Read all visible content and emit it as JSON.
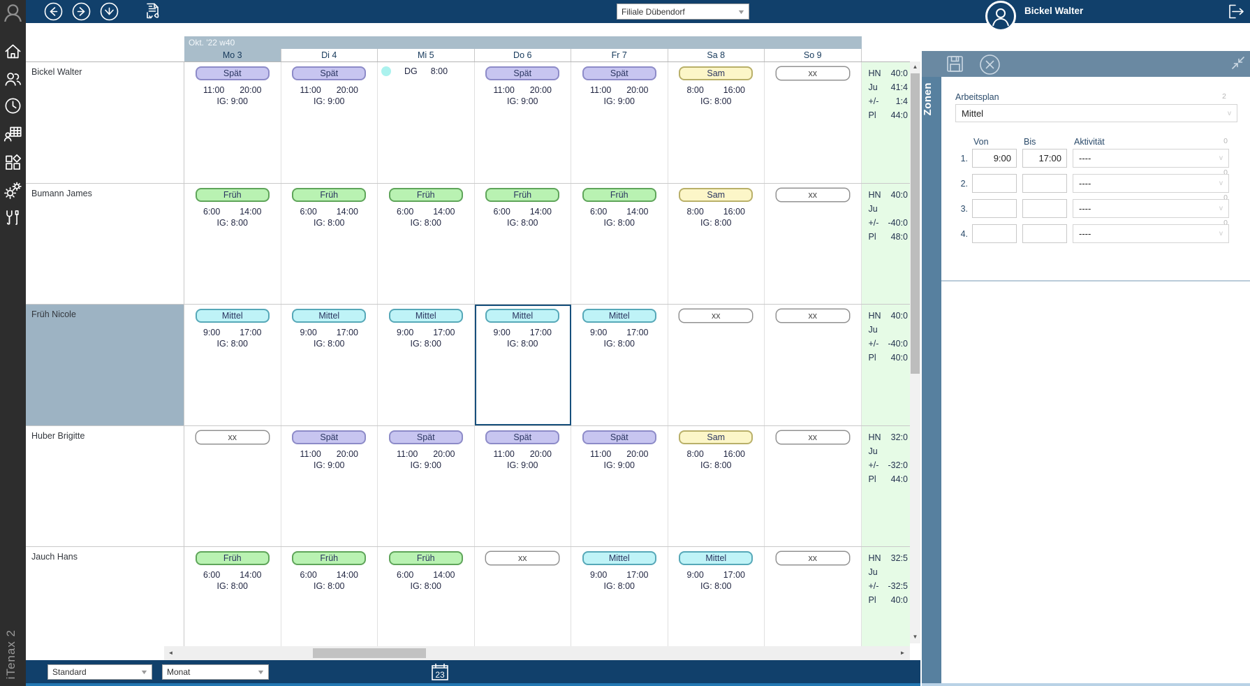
{
  "app": {
    "name": "iTenax 2"
  },
  "topbar": {
    "branch_select": "Filiale Dübendorf",
    "user": "Bickel Walter",
    "icons": [
      "arrow-left-circle",
      "arrow-right-circle",
      "arrow-down-circle",
      "export-pdf",
      "user-avatar",
      "logout"
    ]
  },
  "sidebar": {
    "icons": [
      "app-logo",
      "home",
      "users",
      "clock",
      "staff-schedule",
      "modules",
      "settings",
      "tools"
    ],
    "brand": "iTenax 2"
  },
  "calendar": {
    "week_label": "Okt. '22 w40",
    "days": [
      {
        "label": "Mo 3",
        "today": true
      },
      {
        "label": "Di 4",
        "today": false
      },
      {
        "label": "Mi 5",
        "today": false
      },
      {
        "label": "Do 6",
        "today": false
      },
      {
        "label": "Fr 7",
        "today": false
      },
      {
        "label": "Sa 8",
        "today": false
      },
      {
        "label": "So 9",
        "today": false
      }
    ],
    "summary_labels": [
      "HN",
      "Ju",
      "+/-",
      "Pl"
    ],
    "selected_day_index": 3,
    "employees": [
      {
        "name": "Bickel Walter",
        "selected": false,
        "cells": [
          {
            "t": "shift",
            "label": "Spät",
            "from": "11:00",
            "to": "20:00",
            "ig": "IG: 9:00"
          },
          {
            "t": "shift",
            "label": "Spät",
            "from": "11:00",
            "to": "20:00",
            "ig": "IG: 9:00"
          },
          {
            "t": "note",
            "code": "DG",
            "time": "8:00"
          },
          {
            "t": "shift",
            "label": "Spät",
            "from": "11:00",
            "to": "20:00",
            "ig": "IG: 9:00"
          },
          {
            "t": "shift",
            "label": "Spät",
            "from": "11:00",
            "to": "20:00",
            "ig": "IG: 9:00"
          },
          {
            "t": "shift",
            "label": "Sam",
            "from": "8:00",
            "to": "16:00",
            "ig": "IG: 8:00"
          },
          {
            "t": "off",
            "label": "xx"
          }
        ],
        "summary": [
          "40:0",
          "41:4",
          "1:4",
          "44:0"
        ]
      },
      {
        "name": "Bumann James",
        "selected": false,
        "cells": [
          {
            "t": "shift",
            "label": "Früh",
            "from": "6:00",
            "to": "14:00",
            "ig": "IG: 8:00"
          },
          {
            "t": "shift",
            "label": "Früh",
            "from": "6:00",
            "to": "14:00",
            "ig": "IG: 8:00"
          },
          {
            "t": "shift",
            "label": "Früh",
            "from": "6:00",
            "to": "14:00",
            "ig": "IG: 8:00"
          },
          {
            "t": "shift",
            "label": "Früh",
            "from": "6:00",
            "to": "14:00",
            "ig": "IG: 8:00"
          },
          {
            "t": "shift",
            "label": "Früh",
            "from": "6:00",
            "to": "14:00",
            "ig": "IG: 8:00"
          },
          {
            "t": "shift",
            "label": "Sam",
            "from": "8:00",
            "to": "16:00",
            "ig": "IG: 8:00"
          },
          {
            "t": "off",
            "label": "xx"
          }
        ],
        "summary": [
          "40:0",
          "",
          "-40:0",
          "48:0"
        ]
      },
      {
        "name": "Früh Nicole",
        "selected": true,
        "cells": [
          {
            "t": "shift",
            "label": "Mittel",
            "from": "9:00",
            "to": "17:00",
            "ig": "IG: 8:00"
          },
          {
            "t": "shift",
            "label": "Mittel",
            "from": "9:00",
            "to": "17:00",
            "ig": "IG: 8:00"
          },
          {
            "t": "shift",
            "label": "Mittel",
            "from": "9:00",
            "to": "17:00",
            "ig": "IG: 8:00"
          },
          {
            "t": "shift",
            "label": "Mittel",
            "from": "9:00",
            "to": "17:00",
            "ig": "IG: 8:00"
          },
          {
            "t": "shift",
            "label": "Mittel",
            "from": "9:00",
            "to": "17:00",
            "ig": "IG: 8:00"
          },
          {
            "t": "off",
            "label": "xx"
          },
          {
            "t": "off",
            "label": "xx"
          }
        ],
        "summary": [
          "40:0",
          "",
          "-40:0",
          "40:0"
        ]
      },
      {
        "name": "Huber Brigitte",
        "selected": false,
        "cells": [
          {
            "t": "off",
            "label": "xx"
          },
          {
            "t": "shift",
            "label": "Spät",
            "from": "11:00",
            "to": "20:00",
            "ig": "IG: 9:00"
          },
          {
            "t": "shift",
            "label": "Spät",
            "from": "11:00",
            "to": "20:00",
            "ig": "IG: 9:00"
          },
          {
            "t": "shift",
            "label": "Spät",
            "from": "11:00",
            "to": "20:00",
            "ig": "IG: 9:00"
          },
          {
            "t": "shift",
            "label": "Spät",
            "from": "11:00",
            "to": "20:00",
            "ig": "IG: 9:00"
          },
          {
            "t": "shift",
            "label": "Sam",
            "from": "8:00",
            "to": "16:00",
            "ig": "IG: 8:00"
          },
          {
            "t": "off",
            "label": "xx"
          }
        ],
        "summary": [
          "32:0",
          "",
          "-32:0",
          "44:0"
        ]
      },
      {
        "name": "Jauch Hans",
        "selected": false,
        "cells": [
          {
            "t": "shift",
            "label": "Früh",
            "from": "6:00",
            "to": "14:00",
            "ig": "IG: 8:00"
          },
          {
            "t": "shift",
            "label": "Früh",
            "from": "6:00",
            "to": "14:00",
            "ig": "IG: 8:00"
          },
          {
            "t": "shift",
            "label": "Früh",
            "from": "6:00",
            "to": "14:00",
            "ig": "IG: 8:00"
          },
          {
            "t": "off",
            "label": "xx"
          },
          {
            "t": "shift",
            "label": "Mittel",
            "from": "9:00",
            "to": "17:00",
            "ig": "IG: 8:00"
          },
          {
            "t": "shift",
            "label": "Mittel",
            "from": "9:00",
            "to": "17:00",
            "ig": "IG: 8:00"
          },
          {
            "t": "off",
            "label": "xx"
          }
        ],
        "summary": [
          "32:5",
          "",
          "-32:5",
          "40:0"
        ]
      }
    ]
  },
  "panel": {
    "tab": "Zonen",
    "icons": [
      "save",
      "close",
      "collapse"
    ],
    "arbeitsplan": {
      "label": "Arbeitsplan",
      "value": "Mittel",
      "counter": "2"
    },
    "columns": {
      "von": "Von",
      "bis": "Bis",
      "aktivitaet": "Aktivität",
      "counter": "0"
    },
    "rows": [
      {
        "num": "1.",
        "von": "9:00",
        "bis": "17:00",
        "akt": "----",
        "counter": "0"
      },
      {
        "num": "2.",
        "von": "",
        "bis": "",
        "akt": "----",
        "counter": "0"
      },
      {
        "num": "3.",
        "von": "",
        "bis": "",
        "akt": "----",
        "counter": "0"
      },
      {
        "num": "4.",
        "von": "",
        "bis": "",
        "akt": "----",
        "counter": ""
      }
    ]
  },
  "bottombar": {
    "view_select": "Standard",
    "period_select": "Monat",
    "calendar_day": "23"
  },
  "colors": {
    "topbar": "#11406B",
    "sidebar": "#2D2D2D",
    "header_band": "#A9BDCA",
    "selected_row": "#9DB3C3",
    "summary_bg": "#E6FBE6",
    "panel_header": "#6A89A2",
    "panel_rail": "#57809F",
    "selected_cell_border": "#17507C",
    "note_dot": "#ABF2EE",
    "shifts": {
      "Spät": {
        "bg": "#C7C5F0",
        "border": "#8D8BC8"
      },
      "Früh": {
        "bg": "#B9F2B2",
        "border": "#5FA55A"
      },
      "Mittel": {
        "bg": "#BFF3F7",
        "border": "#56A8B8"
      },
      "Sam": {
        "bg": "#FCF6C8",
        "border": "#B9B069"
      },
      "xx": {
        "bg": "#FFFFFF",
        "border": "#8F8F8F"
      }
    }
  }
}
